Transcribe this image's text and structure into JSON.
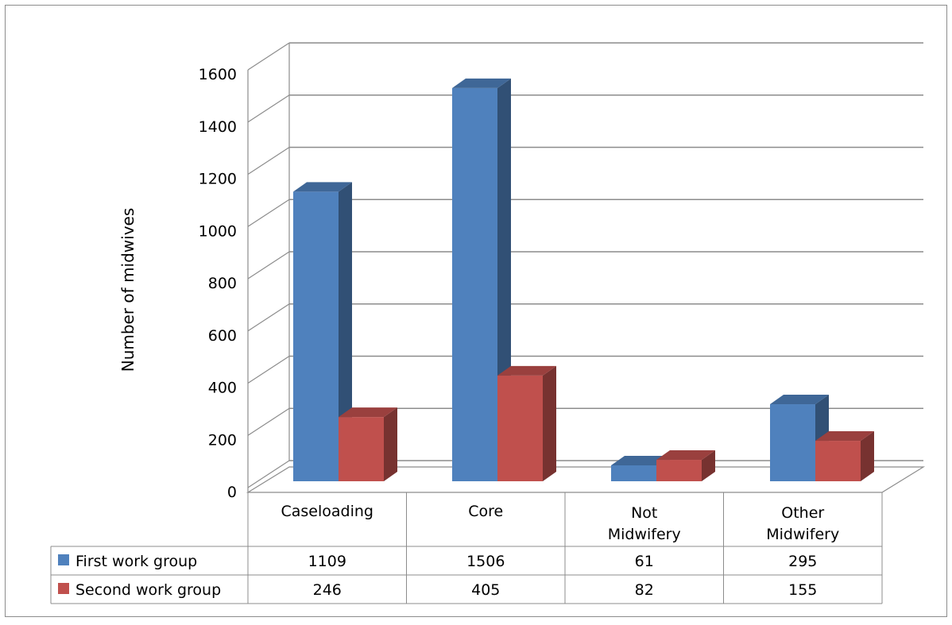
{
  "chart_data": {
    "type": "bar",
    "title": "",
    "xlabel": "",
    "ylabel": "Number of midwives",
    "ylim": [
      0,
      1600
    ],
    "yticks": [
      "0",
      "200",
      "400",
      "600",
      "800",
      "1000",
      "1200",
      "1400",
      "1600"
    ],
    "grid": true,
    "legend": "data-table-left",
    "categories": [
      [
        "Caseloading"
      ],
      [
        "Core"
      ],
      [
        "Not",
        "Midwifery"
      ],
      [
        "Other",
        "Midwifery"
      ]
    ],
    "series": [
      {
        "name": "First work group",
        "color": "#4f81bd",
        "values": [
          1109,
          1506,
          61,
          295
        ],
        "labels": [
          "1109",
          "1506",
          "61",
          "295"
        ]
      },
      {
        "name": "Second work group",
        "color": "#c0504d",
        "values": [
          246,
          405,
          82,
          155
        ],
        "labels": [
          "246",
          "405",
          "82",
          "155"
        ]
      }
    ]
  }
}
